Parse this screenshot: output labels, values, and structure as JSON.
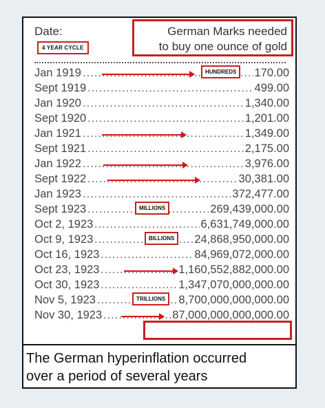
{
  "header": {
    "date_label": "Date:",
    "cycle_label": "4 YEAR CYCLE",
    "title_line1": "German Marks needed",
    "title_line2": "to buy one ounce of gold"
  },
  "chart_data": {
    "type": "table",
    "columns": [
      "Date:",
      "German Marks needed to buy one ounce of gold"
    ],
    "rows": [
      {
        "date": "Jan 1919",
        "value": "170.00"
      },
      {
        "date": "Sept 1919",
        "value": "499.00"
      },
      {
        "date": "Jan 1920",
        "value": "1,340.00"
      },
      {
        "date": "Sept 1920",
        "value": "1,201.00"
      },
      {
        "date": "Jan 1921",
        "value": "1,349.00"
      },
      {
        "date": "Sept 1921",
        "value": "2,175.00"
      },
      {
        "date": "Jan 1922",
        "value": "3,976.00"
      },
      {
        "date": "Sept 1922",
        "value": "30,381.00"
      },
      {
        "date": "Jan 1923",
        "value": "372,477.00"
      },
      {
        "date": "Sept 1923",
        "value": "269,439,000.00"
      },
      {
        "date": "Oct 2, 1923",
        "value": "6,631,749,000.00"
      },
      {
        "date": "Oct 9, 1923",
        "value": "24,868,950,000.00"
      },
      {
        "date": "Oct 16, 1923",
        "value": "84,969,072,000.00"
      },
      {
        "date": "Oct 23, 1923",
        "value": "1,160,552,882,000.00"
      },
      {
        "date": "Oct 30, 1923",
        "value": "1,347,070,000,000.00"
      },
      {
        "date": "Nov 5, 1923",
        "value": "8,700,000,000,000.00"
      },
      {
        "date": "Nov 30, 1923",
        "value": "87,000,000,000,000.00"
      }
    ],
    "annotations": {
      "hundreds": "HUNDREDS",
      "millions": "MILLIONS",
      "billions": "BILLIONS",
      "trillions": "TRILLIONS"
    }
  },
  "caption": {
    "line1": "The German hyperinflation occurred",
    "line2": "over a period of several years"
  },
  "colors": {
    "accent": "#c82020",
    "border": "#111111",
    "background": "#e9eef3"
  }
}
